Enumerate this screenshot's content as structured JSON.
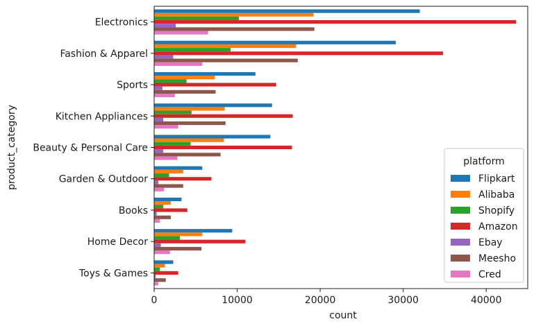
{
  "chart_data": {
    "type": "bar",
    "orientation": "horizontal",
    "xlabel": "count",
    "ylabel": "product_category",
    "xlim": [
      0,
      45000
    ],
    "x_ticks": [
      0,
      10000,
      20000,
      30000,
      40000
    ],
    "x_tick_labels": [
      "0",
      "10000",
      "20000",
      "30000",
      "40000"
    ],
    "grid": false,
    "legend": {
      "title": "platform",
      "placement": "bottom-right"
    },
    "categories": [
      "Electronics",
      "Fashion & Apparel",
      "Sports",
      "Kitchen Appliances",
      "Beauty & Personal Care",
      "Garden & Outdoor",
      "Books",
      "Home Decor",
      "Toys & Games"
    ],
    "series": [
      {
        "name": "Flipkart",
        "color": "#1f77b4",
        "values": [
          32000,
          29100,
          12200,
          14200,
          14000,
          5800,
          3300,
          9400,
          2300
        ]
      },
      {
        "name": "Alibaba",
        "color": "#ff7f0e",
        "values": [
          19200,
          17100,
          7300,
          8500,
          8400,
          3500,
          2000,
          5800,
          1300
        ]
      },
      {
        "name": "Shopify",
        "color": "#2ca02c",
        "values": [
          10200,
          9200,
          3900,
          4500,
          4400,
          1800,
          1100,
          3100,
          700
        ]
      },
      {
        "name": "Amazon",
        "color": "#d62728",
        "values": [
          43600,
          34800,
          14700,
          16700,
          16600,
          6900,
          4000,
          11000,
          2900
        ]
      },
      {
        "name": "Ebay",
        "color": "#9467bd",
        "values": [
          2600,
          2300,
          1000,
          1100,
          1100,
          500,
          300,
          800,
          200
        ]
      },
      {
        "name": "Meesho",
        "color": "#8c564b",
        "values": [
          19300,
          17300,
          7400,
          8600,
          8000,
          3500,
          2000,
          5700,
          1400
        ]
      },
      {
        "name": "Cred",
        "color": "#e377c2",
        "values": [
          6500,
          5800,
          2500,
          2900,
          2800,
          1200,
          700,
          1900,
          500
        ]
      }
    ]
  }
}
